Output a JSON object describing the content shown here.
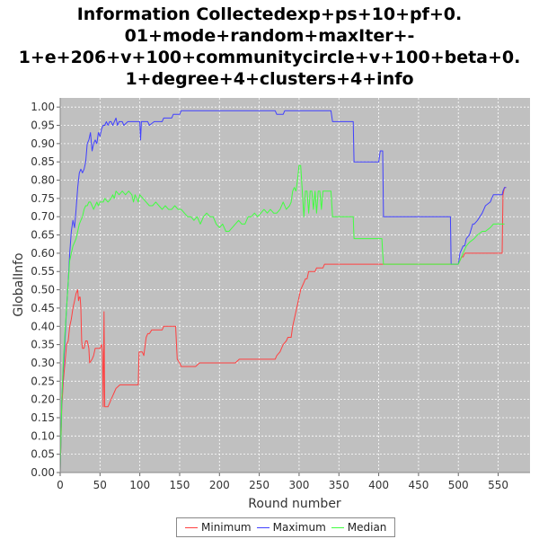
{
  "chart_data": {
    "type": "line",
    "title_lines": [
      "Information Collectedexp+ps+10+pf+0.",
      "01+mode+random+maxIter+-",
      "1+e+206+v+100+communitycircle+v+100+beta+0.",
      "1+degree+4+clusters+4+info"
    ],
    "xlabel": "Round number",
    "ylabel": "GlobalInfo",
    "xlim": [
      0,
      590
    ],
    "ylim": [
      0,
      1.025
    ],
    "xticks": [
      0,
      50,
      100,
      150,
      200,
      250,
      300,
      350,
      400,
      450,
      500,
      550
    ],
    "yticks": [
      "0.00",
      "0.05",
      "0.10",
      "0.15",
      "0.20",
      "0.25",
      "0.30",
      "0.35",
      "0.40",
      "0.45",
      "0.50",
      "0.55",
      "0.60",
      "0.65",
      "0.70",
      "0.75",
      "0.80",
      "0.85",
      "0.90",
      "0.95",
      "1.00"
    ],
    "grid": true,
    "legend_position": "bottom",
    "series": [
      {
        "name": "Minimum",
        "color": "#ff4040",
        "points": [
          [
            0,
            0.0
          ],
          [
            2,
            0.18
          ],
          [
            4,
            0.25
          ],
          [
            6,
            0.3
          ],
          [
            8,
            0.35
          ],
          [
            10,
            0.36
          ],
          [
            12,
            0.4
          ],
          [
            14,
            0.42
          ],
          [
            16,
            0.45
          ],
          [
            18,
            0.47
          ],
          [
            20,
            0.49
          ],
          [
            22,
            0.5
          ],
          [
            23,
            0.47
          ],
          [
            24,
            0.48
          ],
          [
            25,
            0.48
          ],
          [
            26,
            0.45
          ],
          [
            27,
            0.36
          ],
          [
            28,
            0.34
          ],
          [
            30,
            0.34
          ],
          [
            32,
            0.36
          ],
          [
            34,
            0.36
          ],
          [
            36,
            0.34
          ],
          [
            37,
            0.3
          ],
          [
            40,
            0.31
          ],
          [
            42,
            0.32
          ],
          [
            44,
            0.34
          ],
          [
            48,
            0.34
          ],
          [
            50,
            0.34
          ],
          [
            52,
            0.35
          ],
          [
            53,
            0.33
          ],
          [
            54,
            0.18
          ],
          [
            55,
            0.44
          ],
          [
            56,
            0.18
          ],
          [
            60,
            0.18
          ],
          [
            62,
            0.19
          ],
          [
            64,
            0.2
          ],
          [
            66,
            0.21
          ],
          [
            68,
            0.22
          ],
          [
            70,
            0.23
          ],
          [
            75,
            0.24
          ],
          [
            80,
            0.24
          ],
          [
            85,
            0.24
          ],
          [
            95,
            0.24
          ],
          [
            98,
            0.24
          ],
          [
            99,
            0.33
          ],
          [
            103,
            0.33
          ],
          [
            105,
            0.32
          ],
          [
            108,
            0.37
          ],
          [
            110,
            0.38
          ],
          [
            112,
            0.38
          ],
          [
            115,
            0.39
          ],
          [
            128,
            0.39
          ],
          [
            130,
            0.4
          ],
          [
            145,
            0.4
          ],
          [
            147,
            0.31
          ],
          [
            150,
            0.3
          ],
          [
            152,
            0.29
          ],
          [
            170,
            0.29
          ],
          [
            175,
            0.3
          ],
          [
            200,
            0.3
          ],
          [
            220,
            0.3
          ],
          [
            225,
            0.31
          ],
          [
            270,
            0.31
          ],
          [
            272,
            0.32
          ],
          [
            276,
            0.33
          ],
          [
            280,
            0.35
          ],
          [
            284,
            0.36
          ],
          [
            286,
            0.37
          ],
          [
            290,
            0.37
          ],
          [
            292,
            0.4
          ],
          [
            294,
            0.42
          ],
          [
            296,
            0.44
          ],
          [
            298,
            0.46
          ],
          [
            300,
            0.48
          ],
          [
            302,
            0.5
          ],
          [
            304,
            0.51
          ],
          [
            306,
            0.52
          ],
          [
            308,
            0.53
          ],
          [
            310,
            0.53
          ],
          [
            312,
            0.55
          ],
          [
            320,
            0.55
          ],
          [
            322,
            0.56
          ],
          [
            330,
            0.56
          ],
          [
            332,
            0.57
          ],
          [
            400,
            0.57
          ],
          [
            500,
            0.57
          ],
          [
            502,
            0.58
          ],
          [
            504,
            0.59
          ],
          [
            506,
            0.59
          ],
          [
            508,
            0.6
          ],
          [
            555,
            0.6
          ],
          [
            556,
            0.76
          ],
          [
            558,
            0.78
          ],
          [
            560,
            0.78
          ]
        ]
      },
      {
        "name": "Maximum",
        "color": "#4040ff",
        "points": [
          [
            0,
            0.0
          ],
          [
            2,
            0.2
          ],
          [
            4,
            0.28
          ],
          [
            6,
            0.36
          ],
          [
            8,
            0.45
          ],
          [
            10,
            0.52
          ],
          [
            12,
            0.6
          ],
          [
            14,
            0.66
          ],
          [
            16,
            0.69
          ],
          [
            18,
            0.67
          ],
          [
            20,
            0.72
          ],
          [
            22,
            0.78
          ],
          [
            24,
            0.82
          ],
          [
            26,
            0.83
          ],
          [
            28,
            0.82
          ],
          [
            30,
            0.83
          ],
          [
            32,
            0.85
          ],
          [
            34,
            0.9
          ],
          [
            36,
            0.91
          ],
          [
            38,
            0.93
          ],
          [
            40,
            0.88
          ],
          [
            42,
            0.9
          ],
          [
            44,
            0.91
          ],
          [
            46,
            0.9
          ],
          [
            48,
            0.93
          ],
          [
            50,
            0.92
          ],
          [
            52,
            0.94
          ],
          [
            54,
            0.95
          ],
          [
            56,
            0.95
          ],
          [
            58,
            0.96
          ],
          [
            60,
            0.95
          ],
          [
            62,
            0.96
          ],
          [
            64,
            0.96
          ],
          [
            66,
            0.95
          ],
          [
            68,
            0.96
          ],
          [
            70,
            0.97
          ],
          [
            72,
            0.95
          ],
          [
            74,
            0.96
          ],
          [
            78,
            0.96
          ],
          [
            80,
            0.95
          ],
          [
            85,
            0.96
          ],
          [
            100,
            0.96
          ],
          [
            101,
            0.91
          ],
          [
            102,
            0.96
          ],
          [
            110,
            0.96
          ],
          [
            112,
            0.95
          ],
          [
            118,
            0.96
          ],
          [
            128,
            0.96
          ],
          [
            130,
            0.97
          ],
          [
            140,
            0.97
          ],
          [
            142,
            0.98
          ],
          [
            150,
            0.98
          ],
          [
            152,
            0.99
          ],
          [
            170,
            0.99
          ],
          [
            270,
            0.99
          ],
          [
            272,
            0.98
          ],
          [
            280,
            0.98
          ],
          [
            282,
            0.99
          ],
          [
            340,
            0.99
          ],
          [
            342,
            0.96
          ],
          [
            368,
            0.96
          ],
          [
            369,
            0.85
          ],
          [
            400,
            0.85
          ],
          [
            402,
            0.88
          ],
          [
            405,
            0.88
          ],
          [
            406,
            0.7
          ],
          [
            490,
            0.7
          ],
          [
            491,
            0.57
          ],
          [
            500,
            0.57
          ],
          [
            502,
            0.6
          ],
          [
            506,
            0.62
          ],
          [
            508,
            0.62
          ],
          [
            510,
            0.64
          ],
          [
            514,
            0.65
          ],
          [
            518,
            0.68
          ],
          [
            520,
            0.68
          ],
          [
            524,
            0.69
          ],
          [
            530,
            0.71
          ],
          [
            534,
            0.73
          ],
          [
            540,
            0.74
          ],
          [
            544,
            0.76
          ],
          [
            555,
            0.76
          ],
          [
            556,
            0.77
          ],
          [
            558,
            0.78
          ],
          [
            560,
            0.78
          ]
        ]
      },
      {
        "name": "Median",
        "color": "#40ff40",
        "points": [
          [
            0,
            0.0
          ],
          [
            2,
            0.2
          ],
          [
            4,
            0.3
          ],
          [
            6,
            0.38
          ],
          [
            8,
            0.45
          ],
          [
            10,
            0.52
          ],
          [
            12,
            0.58
          ],
          [
            14,
            0.6
          ],
          [
            16,
            0.62
          ],
          [
            18,
            0.63
          ],
          [
            20,
            0.64
          ],
          [
            22,
            0.66
          ],
          [
            24,
            0.68
          ],
          [
            26,
            0.69
          ],
          [
            28,
            0.7
          ],
          [
            30,
            0.72
          ],
          [
            32,
            0.73
          ],
          [
            34,
            0.73
          ],
          [
            36,
            0.74
          ],
          [
            38,
            0.74
          ],
          [
            40,
            0.73
          ],
          [
            42,
            0.72
          ],
          [
            44,
            0.73
          ],
          [
            46,
            0.74
          ],
          [
            48,
            0.73
          ],
          [
            50,
            0.74
          ],
          [
            52,
            0.74
          ],
          [
            54,
            0.74
          ],
          [
            56,
            0.75
          ],
          [
            60,
            0.74
          ],
          [
            64,
            0.75
          ],
          [
            66,
            0.76
          ],
          [
            68,
            0.75
          ],
          [
            70,
            0.77
          ],
          [
            74,
            0.76
          ],
          [
            78,
            0.77
          ],
          [
            82,
            0.76
          ],
          [
            86,
            0.77
          ],
          [
            90,
            0.76
          ],
          [
            92,
            0.74
          ],
          [
            94,
            0.76
          ],
          [
            96,
            0.75
          ],
          [
            98,
            0.74
          ],
          [
            100,
            0.76
          ],
          [
            104,
            0.75
          ],
          [
            108,
            0.74
          ],
          [
            112,
            0.73
          ],
          [
            116,
            0.73
          ],
          [
            120,
            0.74
          ],
          [
            124,
            0.73
          ],
          [
            128,
            0.72
          ],
          [
            132,
            0.73
          ],
          [
            136,
            0.72
          ],
          [
            140,
            0.72
          ],
          [
            144,
            0.73
          ],
          [
            148,
            0.72
          ],
          [
            152,
            0.72
          ],
          [
            156,
            0.71
          ],
          [
            160,
            0.7
          ],
          [
            164,
            0.7
          ],
          [
            168,
            0.69
          ],
          [
            172,
            0.7
          ],
          [
            176,
            0.68
          ],
          [
            180,
            0.7
          ],
          [
            184,
            0.71
          ],
          [
            188,
            0.7
          ],
          [
            192,
            0.7
          ],
          [
            196,
            0.68
          ],
          [
            200,
            0.67
          ],
          [
            204,
            0.68
          ],
          [
            208,
            0.66
          ],
          [
            212,
            0.66
          ],
          [
            216,
            0.67
          ],
          [
            220,
            0.68
          ],
          [
            224,
            0.69
          ],
          [
            228,
            0.68
          ],
          [
            232,
            0.68
          ],
          [
            236,
            0.7
          ],
          [
            240,
            0.7
          ],
          [
            244,
            0.71
          ],
          [
            248,
            0.7
          ],
          [
            252,
            0.71
          ],
          [
            256,
            0.72
          ],
          [
            260,
            0.71
          ],
          [
            264,
            0.72
          ],
          [
            268,
            0.71
          ],
          [
            272,
            0.71
          ],
          [
            276,
            0.72
          ],
          [
            280,
            0.74
          ],
          [
            284,
            0.72
          ],
          [
            288,
            0.73
          ],
          [
            290,
            0.74
          ],
          [
            292,
            0.77
          ],
          [
            294,
            0.78
          ],
          [
            296,
            0.77
          ],
          [
            298,
            0.8
          ],
          [
            300,
            0.84
          ],
          [
            302,
            0.84
          ],
          [
            304,
            0.77
          ],
          [
            306,
            0.7
          ],
          [
            308,
            0.77
          ],
          [
            310,
            0.77
          ],
          [
            312,
            0.71
          ],
          [
            314,
            0.77
          ],
          [
            316,
            0.77
          ],
          [
            318,
            0.72
          ],
          [
            320,
            0.77
          ],
          [
            322,
            0.71
          ],
          [
            324,
            0.77
          ],
          [
            326,
            0.77
          ],
          [
            328,
            0.72
          ],
          [
            330,
            0.77
          ],
          [
            340,
            0.77
          ],
          [
            342,
            0.7
          ],
          [
            368,
            0.7
          ],
          [
            369,
            0.64
          ],
          [
            400,
            0.64
          ],
          [
            404,
            0.64
          ],
          [
            405,
            0.6
          ],
          [
            406,
            0.57
          ],
          [
            500,
            0.57
          ],
          [
            502,
            0.58
          ],
          [
            506,
            0.6
          ],
          [
            510,
            0.62
          ],
          [
            514,
            0.63
          ],
          [
            520,
            0.64
          ],
          [
            524,
            0.65
          ],
          [
            530,
            0.66
          ],
          [
            534,
            0.66
          ],
          [
            540,
            0.67
          ],
          [
            544,
            0.68
          ],
          [
            550,
            0.68
          ],
          [
            555,
            0.68
          ],
          [
            558,
            0.68
          ]
        ]
      }
    ]
  }
}
